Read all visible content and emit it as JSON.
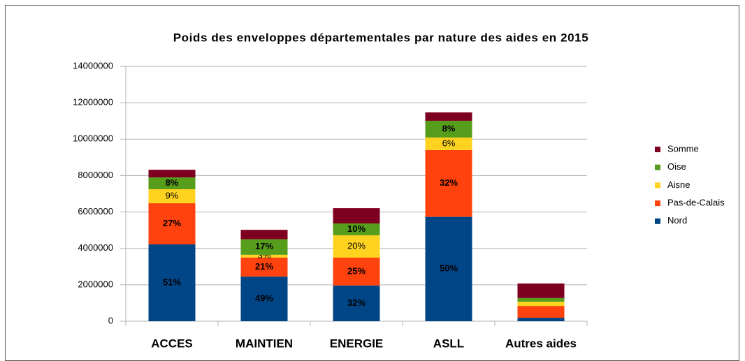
{
  "chart_data": {
    "type": "stacked_bar",
    "title": "Poids des enveloppes départementales par nature des aides en 2015",
    "categories": [
      "ACCES",
      "MAINTIEN",
      "ENERGIE",
      "ASLL",
      "Autres aides"
    ],
    "series": [
      {
        "name": "Nord",
        "color": "#004586",
        "values": [
          4220000,
          2450000,
          1960000,
          5730000,
          190000
        ],
        "percent_labels": [
          "51%",
          "49%",
          "32%",
          "50%",
          null
        ]
      },
      {
        "name": "Pas-de-Calais",
        "color": "#ff420e",
        "values": [
          2260000,
          1050000,
          1530000,
          3670000,
          650000
        ],
        "percent_labels": [
          "27%",
          "21%",
          "25%",
          "32%",
          null
        ]
      },
      {
        "name": "Aisne",
        "color": "#ffd320",
        "values": [
          770000,
          150000,
          1230000,
          690000,
          230000
        ],
        "percent_labels": [
          "9%",
          "3%",
          "20%",
          "6%",
          null
        ]
      },
      {
        "name": "Oise",
        "color": "#579d1c",
        "values": [
          650000,
          850000,
          650000,
          920000,
          200000
        ],
        "percent_labels": [
          "8%",
          "17%",
          "10%",
          "8%",
          null
        ]
      },
      {
        "name": "Somme",
        "color": "#7e0021",
        "values": [
          420000,
          520000,
          840000,
          460000,
          800000
        ],
        "percent_labels": [
          null,
          null,
          null,
          null,
          null
        ]
      }
    ],
    "ylim": [
      0,
      14000000
    ],
    "yticks": [
      0,
      2000000,
      4000000,
      6000000,
      8000000,
      10000000,
      12000000,
      14000000
    ],
    "grid": true,
    "legend": "right"
  }
}
